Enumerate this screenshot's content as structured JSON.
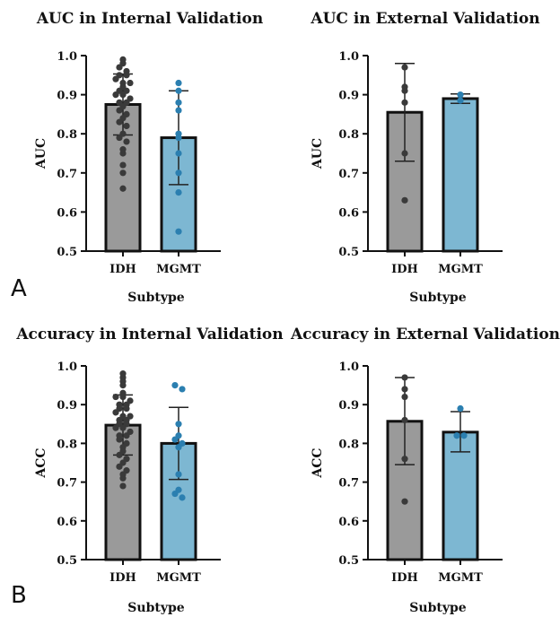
{
  "panel_labels": [
    "A",
    "B"
  ],
  "colors": {
    "idh_bar": "#9a9a9a",
    "idh_dot": "#3a3a3a",
    "mgmt_bar": "#7db7d2",
    "mgmt_dot": "#2b7fb0",
    "axis": "#111111"
  },
  "chart_data": [
    {
      "type": "bar",
      "title": "AUC in Internal Validation",
      "xlabel": "Subtype",
      "ylabel": "AUC",
      "ylim": [
        0.5,
        1.0
      ],
      "yticks": [
        "0.5",
        "0.6",
        "0.7",
        "0.8",
        "0.9",
        "1.0"
      ],
      "categories": [
        "IDH",
        "MGMT"
      ],
      "values": [
        0.875,
        0.79
      ],
      "error_low": [
        0.797,
        0.67
      ],
      "error_high": [
        0.953,
        0.91
      ],
      "points": [
        [
          0.99,
          0.98,
          0.97,
          0.96,
          0.95,
          0.95,
          0.94,
          0.93,
          0.93,
          0.92,
          0.91,
          0.91,
          0.9,
          0.9,
          0.89,
          0.88,
          0.88,
          0.87,
          0.86,
          0.85,
          0.84,
          0.83,
          0.82,
          0.8,
          0.79,
          0.78,
          0.76,
          0.75,
          0.72,
          0.7,
          0.66
        ],
        [
          0.93,
          0.91,
          0.88,
          0.86,
          0.8,
          0.79,
          0.75,
          0.7,
          0.65,
          0.55
        ]
      ]
    },
    {
      "type": "bar",
      "title": "AUC in External Validation",
      "xlabel": "Subtype",
      "ylabel": "AUC",
      "ylim": [
        0.5,
        1.0
      ],
      "yticks": [
        "0.5",
        "0.6",
        "0.7",
        "0.8",
        "0.9",
        "1.0"
      ],
      "categories": [
        "IDH",
        "MGMT"
      ],
      "values": [
        0.855,
        0.89
      ],
      "error_low": [
        0.73,
        0.878
      ],
      "error_high": [
        0.98,
        0.902
      ],
      "points": [
        [
          0.97,
          0.92,
          0.91,
          0.88,
          0.75,
          0.63
        ],
        [
          0.9,
          0.885
        ]
      ]
    },
    {
      "type": "bar",
      "title": "Accuracy in Internal Validation",
      "xlabel": "Subtype",
      "ylabel": "ACC",
      "ylim": [
        0.5,
        1.0
      ],
      "yticks": [
        "0.5",
        "0.6",
        "0.7",
        "0.8",
        "0.9",
        "1.0"
      ],
      "categories": [
        "IDH",
        "MGMT"
      ],
      "values": [
        0.847,
        0.8
      ],
      "error_low": [
        0.77,
        0.707
      ],
      "error_high": [
        0.925,
        0.893
      ],
      "points": [
        [
          0.98,
          0.97,
          0.96,
          0.95,
          0.93,
          0.92,
          0.92,
          0.91,
          0.9,
          0.9,
          0.89,
          0.89,
          0.88,
          0.87,
          0.87,
          0.86,
          0.86,
          0.85,
          0.85,
          0.84,
          0.84,
          0.83,
          0.82,
          0.82,
          0.81,
          0.8,
          0.79,
          0.78,
          0.77,
          0.76,
          0.75,
          0.74,
          0.73,
          0.72,
          0.71,
          0.69
        ],
        [
          0.95,
          0.94,
          0.85,
          0.82,
          0.81,
          0.8,
          0.79,
          0.72,
          0.68,
          0.67,
          0.66
        ]
      ]
    },
    {
      "type": "bar",
      "title": "Accuracy in External Validation",
      "xlabel": "Subtype",
      "ylabel": "ACC",
      "ylim": [
        0.5,
        1.0
      ],
      "yticks": [
        "0.5",
        "0.6",
        "0.7",
        "0.8",
        "0.9",
        "1.0"
      ],
      "categories": [
        "IDH",
        "MGMT"
      ],
      "values": [
        0.857,
        0.829
      ],
      "error_low": [
        0.745,
        0.778
      ],
      "error_high": [
        0.97,
        0.882
      ],
      "points": [
        [
          0.97,
          0.94,
          0.92,
          0.86,
          0.76,
          0.65
        ],
        [
          0.89,
          0.82,
          0.82
        ]
      ]
    }
  ]
}
